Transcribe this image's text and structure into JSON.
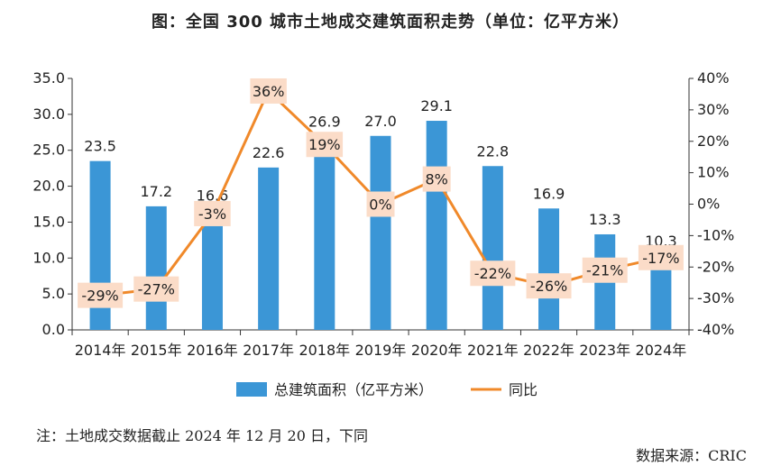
{
  "title": "图：全国 300 城市土地成交建筑面积走势（单位：亿平方米）",
  "note": "注：土地成交数据截止 2024 年 12 月 20 日，下同",
  "source": "数据来源：CRIC",
  "colors": {
    "bar": "#3b96d6",
    "line": "#f0892a",
    "label_bg": "#fbdcc8",
    "axis": "#333333"
  },
  "chart_data": {
    "type": "bar+line",
    "categories": [
      "2014年",
      "2015年",
      "2016年",
      "2017年",
      "2018年",
      "2019年",
      "2020年",
      "2021年",
      "2022年",
      "2023年",
      "2024年"
    ],
    "series": [
      {
        "name": "总建筑面积（亿平方米）",
        "type": "bar",
        "axis": "left",
        "values": [
          23.5,
          17.2,
          16.6,
          22.6,
          26.9,
          27.0,
          29.1,
          22.8,
          16.9,
          13.3,
          10.3
        ],
        "labels": [
          "23.5",
          "17.2",
          "16.6",
          "22.6",
          "26.9",
          "27.0",
          "29.1",
          "22.8",
          "16.9",
          "13.3",
          "10.3"
        ]
      },
      {
        "name": "同比",
        "type": "line",
        "axis": "right",
        "values": [
          -29,
          -27,
          -3,
          36,
          19,
          0,
          8,
          -22,
          -26,
          -21,
          -17
        ],
        "labels": [
          "-29%",
          "-27%",
          "-3%",
          "36%",
          "19%",
          "0%",
          "8%",
          "-22%",
          "-26%",
          "-21%",
          "-17%"
        ]
      }
    ],
    "y_left": {
      "range": [
        0,
        35
      ],
      "ticks": [
        "0.0",
        "5.0",
        "10.0",
        "15.0",
        "20.0",
        "25.0",
        "30.0",
        "35.0"
      ]
    },
    "y_right": {
      "range": [
        -40,
        40
      ],
      "ticks": [
        "-40%",
        "-30%",
        "-20%",
        "-10%",
        "0%",
        "10%",
        "20%",
        "30%",
        "40%"
      ]
    },
    "legend_position": "bottom",
    "grid": false
  }
}
